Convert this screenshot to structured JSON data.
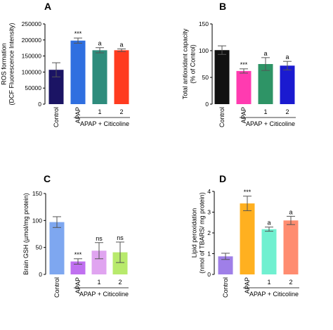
{
  "chart_data": [
    {
      "type": "bar",
      "panel": "A",
      "ylabel": [
        "ROS formation",
        "(DCF Fluorescence Intensity)"
      ],
      "ylim": [
        0,
        250000
      ],
      "yticks": [
        0,
        50000,
        100000,
        150000,
        200000,
        250000
      ],
      "ytick_labels": [
        "0",
        "50000",
        "100000",
        "150000",
        "200000",
        "250000"
      ],
      "categories": [
        "Control",
        "APAP",
        "1",
        "2"
      ],
      "values": [
        107000,
        198000,
        168000,
        168000
      ],
      "errors": [
        22000,
        8000,
        8000,
        4000
      ],
      "colors": [
        "#1b1464",
        "#2f6fe0",
        "#2e8c7c",
        "#ff3b1f"
      ],
      "significance": [
        "",
        "***",
        "a",
        "a"
      ],
      "group_label": "APAP + Citicoline"
    },
    {
      "type": "bar",
      "panel": "B",
      "ylabel": [
        "Total antioxidant capacity",
        "(% of Control)"
      ],
      "ylim": [
        0,
        150
      ],
      "yticks": [
        0,
        50,
        100,
        150
      ],
      "ytick_labels": [
        "0",
        "50",
        "100",
        "150"
      ],
      "categories": [
        "Control",
        "APAP",
        "1",
        "2"
      ],
      "values": [
        101,
        62,
        75,
        72
      ],
      "errors": [
        8,
        4,
        12,
        8
      ],
      "colors": [
        "#111111",
        "#ff3bb0",
        "#2e9466",
        "#1a1ad0"
      ],
      "significance": [
        "",
        "***",
        "a",
        "a"
      ],
      "group_label": "APAP + Citicoline"
    },
    {
      "type": "bar",
      "panel": "C",
      "ylabel": [
        "Brain GSH (µmol/mg protein)"
      ],
      "ylim": [
        0,
        150
      ],
      "yticks": [
        0,
        50,
        100,
        150
      ],
      "ytick_labels": [
        "0",
        "50",
        "100",
        "150"
      ],
      "categories": [
        "Control",
        "APAP",
        "1",
        "2"
      ],
      "values": [
        97,
        24,
        44,
        41
      ],
      "errors": [
        10,
        5,
        15,
        19
      ],
      "colors": [
        "#7ea7f0",
        "#c070f0",
        "#e0a4f0",
        "#b8ea6c"
      ],
      "significance": [
        "",
        "***",
        "ns",
        "ns"
      ],
      "group_label": "APAP + Citicoline"
    },
    {
      "type": "bar",
      "panel": "D",
      "ylabel": [
        "Lipid peroxidation",
        "(nmol of TBARS/ mg protein)"
      ],
      "ylim": [
        0,
        4
      ],
      "yticks": [
        0,
        1,
        2,
        3,
        4
      ],
      "ytick_labels": [
        "0",
        "1",
        "2",
        "3",
        "4"
      ],
      "categories": [
        "Control",
        "APAP",
        "1",
        "2"
      ],
      "values": [
        0.87,
        3.42,
        2.18,
        2.6
      ],
      "errors": [
        0.15,
        0.35,
        0.1,
        0.2
      ],
      "colors": [
        "#9f7fe8",
        "#ffb020",
        "#70f0d0",
        "#ff8c70"
      ],
      "significance": [
        "",
        "***",
        "a",
        "a"
      ],
      "group_label": "APAP + Citicoline"
    }
  ]
}
